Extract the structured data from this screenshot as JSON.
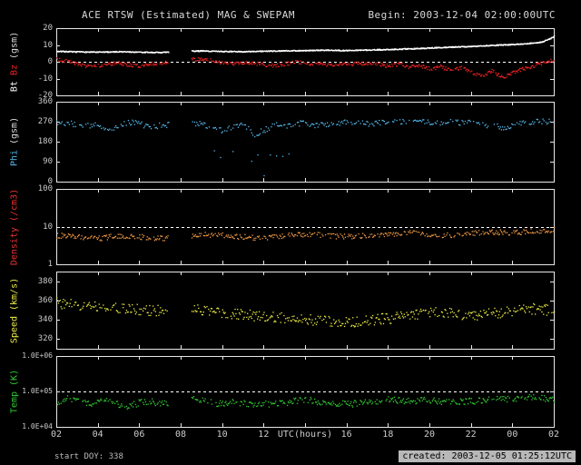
{
  "header": {
    "title": "ACE RTSW (Estimated) MAG & SWEPAM",
    "begin": "Begin: 2003-12-04 02:00:00UTC"
  },
  "footer": {
    "start_doy": "start DOY: 338",
    "created": "created: 2003-12-05 01:25:12UTC"
  },
  "colors": {
    "background": "#000000",
    "frame": "#e8e8e8",
    "tick_text": "#cccccc",
    "bt": "#ffffff",
    "bz": "#ee2222",
    "phi": "#55bbee",
    "density": "#ee9944",
    "density_label": "#ee3333",
    "speed": "#eeee44",
    "temp": "#33cc33"
  },
  "chart_data": {
    "type": "scatter",
    "title": "ACE RTSW (Estimated) MAG & SWEPAM",
    "begin_utc": "2003-12-04 02:00:00UTC",
    "gap_hours": [
      5.4,
      6.5
    ],
    "x_axis": {
      "label": "UTC(hours)",
      "label_at_hour": 12,
      "span_hours": 24,
      "tick_step_hours": 2,
      "tick_labels": [
        "02",
        "04",
        "06",
        "08",
        "10",
        "12",
        "",
        "16",
        "18",
        "20",
        "22",
        "00",
        "02"
      ]
    },
    "panels": [
      {
        "name": "bt-bz",
        "yscale": "linear",
        "ylim": [
          -20,
          20
        ],
        "ref_line": 0,
        "yticks": [
          {
            "v": 20,
            "label": "20"
          },
          {
            "v": 10,
            "label": "10"
          },
          {
            "v": 0,
            "label": "0"
          },
          {
            "v": -10,
            "label": "-10"
          },
          {
            "v": -20,
            "label": "-20"
          }
        ],
        "ylabel_parts": [
          {
            "text": "Bt ",
            "color": "#ffffff"
          },
          {
            "text": "Bz ",
            "color": "#ee2222"
          },
          {
            "text": "(gsm)",
            "color": "#dddddd"
          }
        ],
        "series": [
          {
            "name": "Bt",
            "color": "#ffffff",
            "step": 0.02,
            "noise": 0.3,
            "skip": 1.0,
            "size": 1.3,
            "x": [
              0,
              1,
              2,
              3,
              4,
              5,
              6.5,
              7,
              8,
              9,
              10,
              11,
              12,
              13,
              14,
              15,
              16,
              17,
              18,
              19,
              20,
              21,
              22,
              22.8,
              23.4,
              23.8,
              24
            ],
            "y": [
              6.5,
              6.2,
              6.0,
              6.3,
              6.0,
              5.8,
              6.6,
              6.8,
              6.4,
              6.3,
              6.6,
              6.8,
              7.0,
              7.2,
              7.0,
              7.3,
              7.6,
              8.0,
              8.5,
              9.0,
              9.4,
              10.0,
              10.6,
              11.2,
              12.0,
              14.0,
              15.5
            ]
          },
          {
            "name": "Bz",
            "color": "#ee2222",
            "step": 0.035,
            "noise": 1.1,
            "skip": 0.85,
            "size": 1.3,
            "x": [
              0,
              0.5,
              1,
              1.5,
              2,
              2.5,
              3,
              3.5,
              4,
              4.5,
              5,
              6.5,
              7,
              7.5,
              8,
              8.5,
              9,
              9.5,
              10,
              10.5,
              11,
              11.5,
              12,
              13,
              14,
              15,
              16,
              16.5,
              17,
              17.5,
              18,
              18.5,
              19,
              19.5,
              20,
              20.5,
              21,
              21.5,
              22,
              22.5,
              23,
              23.5,
              24
            ],
            "y": [
              2,
              0.5,
              -1,
              -2.5,
              -2,
              -1,
              -0.5,
              -1.5,
              -2,
              -1,
              -0.5,
              1.5,
              2,
              1,
              0,
              -1,
              0,
              -0.5,
              -1.5,
              -2,
              -1,
              0,
              -0.5,
              -1.5,
              -1,
              -0.8,
              -2,
              -1,
              -3,
              -2,
              -4,
              -2.5,
              -5,
              -3,
              -6,
              -8,
              -5,
              -9,
              -6,
              -4,
              -2,
              0,
              1.5
            ]
          }
        ]
      },
      {
        "name": "phi",
        "yscale": "linear",
        "ylim": [
          0,
          360
        ],
        "ref_line": null,
        "yticks": [
          {
            "v": 360,
            "label": "360"
          },
          {
            "v": 270,
            "label": "270"
          },
          {
            "v": 180,
            "label": "180"
          },
          {
            "v": 90,
            "label": "90"
          },
          {
            "v": 0,
            "label": "0"
          }
        ],
        "ylabel_parts": [
          {
            "text": "Phi ",
            "color": "#55bbee"
          },
          {
            "text": "(gsm)",
            "color": "#dddddd"
          }
        ],
        "series": [
          {
            "name": "Phi",
            "color": "#55bbee",
            "step": 0.05,
            "noise": 13,
            "skip": 0.78,
            "size": 1.3,
            "x": [
              0,
              0.5,
              1,
              1.5,
              2,
              2.5,
              3,
              3.5,
              4,
              4.5,
              5,
              6.5,
              7,
              7.5,
              8,
              8.5,
              9,
              9.5,
              10,
              10.5,
              11,
              11.5,
              12,
              12.5,
              13,
              13.5,
              14,
              15,
              16,
              17,
              18,
              19,
              20,
              20.5,
              21,
              21.5,
              22,
              22.5,
              23,
              23.5,
              24
            ],
            "y": [
              270,
              265,
              260,
              255,
              262,
              235,
              255,
              270,
              262,
              250,
              256,
              268,
              262,
              245,
              232,
              252,
              262,
              215,
              235,
              258,
              250,
              268,
              262,
              255,
              258,
              266,
              270,
              264,
              268,
              272,
              268,
              270,
              268,
              258,
              252,
              248,
              256,
              264,
              270,
              272,
              270
            ]
          },
          {
            "name": "Phi-outliers",
            "color": "#55bbee",
            "step": 0.3,
            "noise": 45,
            "skip": 0.55,
            "size": 1.3,
            "x": [
              7.6,
              8,
              8.4,
              8.8,
              9.2,
              9.6,
              10,
              10.4,
              10.8,
              11.2,
              11.6
            ],
            "y": [
              150,
              120,
              100,
              140,
              85,
              120,
              65,
              100,
              130,
              150,
              170
            ]
          }
        ]
      },
      {
        "name": "density",
        "yscale": "log",
        "ylim": [
          1,
          100
        ],
        "ref_line": 10,
        "yticks": [
          {
            "v": 100,
            "label": "100"
          },
          {
            "v": 10,
            "label": "10"
          },
          {
            "v": 1,
            "label": "1"
          }
        ],
        "ylabel_parts": [
          {
            "text": "Density ",
            "color": "#ee3333"
          },
          {
            "text": "(/cm3)",
            "color": "#ee3333"
          }
        ],
        "series": [
          {
            "name": "Density",
            "color": "#ee9944",
            "step": 0.04,
            "noise": 0.07,
            "skip": 0.8,
            "size": 1.3,
            "x": [
              0,
              1,
              2,
              3,
              4,
              5,
              6.5,
              7,
              8,
              9,
              10,
              11,
              12,
              13,
              14,
              15,
              16,
              17,
              18,
              19,
              20,
              21,
              22,
              23,
              24
            ],
            "y": [
              6,
              5.5,
              5,
              6,
              5.5,
              5,
              6,
              6.5,
              6,
              5.5,
              5,
              6,
              6.5,
              6,
              5.5,
              6,
              6.5,
              7,
              6.5,
              6,
              7,
              7.5,
              7,
              8,
              8.5
            ]
          }
        ]
      },
      {
        "name": "speed",
        "yscale": "linear",
        "ylim": [
          310,
          390
        ],
        "ref_line": null,
        "yticks": [
          {
            "v": 380,
            "label": "380"
          },
          {
            "v": 360,
            "label": "360"
          },
          {
            "v": 340,
            "label": "340"
          },
          {
            "v": 320,
            "label": "320"
          }
        ],
        "ylabel_parts": [
          {
            "text": "Speed ",
            "color": "#eeee44"
          },
          {
            "text": "(km/s)",
            "color": "#eeee44"
          }
        ],
        "series": [
          {
            "name": "Speed",
            "color": "#eeee44",
            "step": 0.04,
            "noise": 5.5,
            "skip": 0.8,
            "size": 1.3,
            "x": [
              0,
              1,
              2,
              3,
              4,
              5,
              6.5,
              7,
              8,
              9,
              10,
              11,
              12,
              13,
              14,
              15,
              16,
              17,
              18,
              19,
              20,
              21,
              22,
              23,
              24
            ],
            "y": [
              358,
              356,
              354,
              352,
              351,
              350,
              352,
              350,
              348,
              346,
              344,
              342,
              341,
              339,
              338,
              340,
              342,
              345,
              348,
              347,
              345,
              347,
              350,
              352,
              350
            ]
          },
          {
            "name": "Speed-outlier",
            "color": "#eeee44",
            "step": 0.1,
            "noise": 2,
            "skip": 0.5,
            "size": 1.3,
            "x": [
              18.0,
              18.2
            ],
            "y": [
              381,
              383
            ]
          }
        ]
      },
      {
        "name": "temp",
        "yscale": "log",
        "ylim": [
          10000,
          1000000
        ],
        "ref_line": 100000,
        "yticks": [
          {
            "v": 1000000,
            "label": "1.0E+06"
          },
          {
            "v": 100000,
            "label": "1.0E+05"
          },
          {
            "v": 10000,
            "label": "1.0E+04"
          }
        ],
        "ylabel_parts": [
          {
            "text": "Temp ",
            "color": "#33cc33"
          },
          {
            "text": "(K)",
            "color": "#33cc33"
          }
        ],
        "series": [
          {
            "name": "Temp",
            "color": "#33cc33",
            "step": 0.04,
            "noise": 0.09,
            "skip": 0.8,
            "size": 1.3,
            "x": [
              0,
              0.5,
              1,
              1.5,
              2,
              2.5,
              3,
              3.5,
              4,
              4.5,
              5,
              6.5,
              7,
              7.5,
              8,
              8.5,
              9,
              9.5,
              10,
              11,
              12,
              13,
              14,
              15,
              16,
              17,
              18,
              19,
              20,
              21,
              22,
              23,
              24
            ],
            "y": [
              50000,
              65000,
              55000,
              45000,
              50000,
              60000,
              45000,
              40000,
              50000,
              55000,
              45000,
              70000,
              60000,
              50000,
              45000,
              55000,
              48000,
              42000,
              45000,
              50000,
              60000,
              50000,
              45000,
              50000,
              60000,
              55000,
              60000,
              50000,
              55000,
              60000,
              65000,
              70000,
              60000
            ]
          }
        ]
      }
    ]
  }
}
